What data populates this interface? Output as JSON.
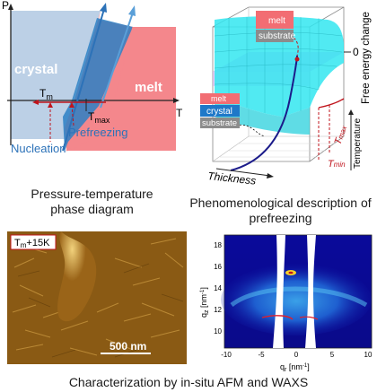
{
  "phase_diagram": {
    "axis_p": "P",
    "axis_t": "T",
    "crystal_label": "crystal",
    "melt_label": "melt",
    "tm_label": "T",
    "tm_sub": "m",
    "tmax_label": "T",
    "tmax_sub": "max",
    "nucleation_label": "Nucleation",
    "prefreezing_label": "Prefreezing",
    "caption_line1": "Pressure-temperature",
    "caption_line2": "phase diagram",
    "colors": {
      "crystal": "#bcd0e6",
      "melt": "#f4878c",
      "overlap": "#2c80c4",
      "arrow": "#c0141c",
      "nucleation": "#2c72b8",
      "prefreezing": "#2c72b8"
    }
  },
  "energy_diagram": {
    "melt_label": "melt",
    "substrate_label": "substrate",
    "crystal_label": "crystal",
    "zero_label": "0",
    "free_energy_label": "Free energy change",
    "temperature_label": "Temperature",
    "thickness_label": "Thickness",
    "tmax_label": "T",
    "tmax_sub": "max",
    "tmin_label": "T",
    "tmin_sub": "min",
    "caption_line1": "Phenomenological description of",
    "caption_line2": "prefreezing",
    "colors": {
      "surface": "#33e6f0",
      "plane": "#d9a8f0",
      "melt": "#f26d73",
      "crystal": "#1f78c8",
      "substrate": "#8c8c8c",
      "curve": "#1b1b8a",
      "tick": "#c0141c"
    }
  },
  "afm": {
    "label": "T",
    "label_sub": "m",
    "label_suffix": "+15K",
    "scalebar_label": "500 nm",
    "colors": {
      "bg": "#8a5a14",
      "highlight": "#e9c26a"
    }
  },
  "waxs": {
    "ylabel": "q",
    "ylabel_sub": "z",
    "ylabel_unit": " [nm",
    "xlabel": "q",
    "xlabel_sub": "r",
    "xlabel_unit": " [nm",
    "unit_sup": "-1",
    "unit_close": "]",
    "yticks": [
      "18",
      "16",
      "14",
      "12",
      "10"
    ],
    "xticks": [
      "-10",
      "-5",
      "0",
      "5",
      "10"
    ]
  },
  "bottom_caption": "Characterization by in-situ AFM and WAXS"
}
